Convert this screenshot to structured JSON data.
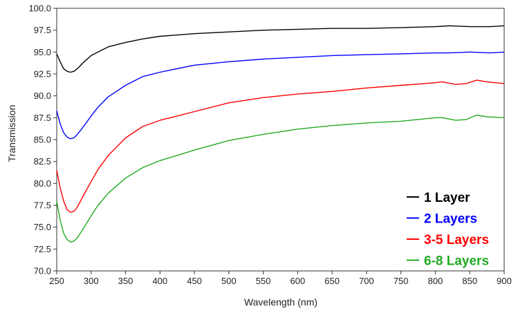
{
  "chart_data": {
    "type": "line",
    "title": "",
    "xlabel": "Wavelength (nm)",
    "ylabel": "Transmission",
    "xlim": [
      250,
      900
    ],
    "ylim": [
      70.0,
      100.0
    ],
    "xticks": [
      250,
      300,
      350,
      400,
      450,
      500,
      550,
      600,
      650,
      700,
      750,
      800,
      850,
      900
    ],
    "xtick_labels": [
      "250",
      "300",
      "350",
      "400",
      "450",
      "500",
      "550",
      "600",
      "650",
      "700",
      "750",
      "800",
      "850",
      "900"
    ],
    "yticks": [
      70.0,
      72.5,
      75.0,
      77.5,
      80.0,
      82.5,
      85.0,
      87.5,
      90.0,
      92.5,
      95.0,
      97.5,
      100.0
    ],
    "ytick_labels": [
      "70.0",
      "72.5",
      "75.0",
      "77.5",
      "80.0",
      "82.5",
      "85.0",
      "87.5",
      "90.0",
      "92.5",
      "95.0",
      "97.5",
      "100.0"
    ],
    "grid": false,
    "legend_position": "bottom-right",
    "series": [
      {
        "name": "1 Layer",
        "color": "#000000",
        "x": [
          250,
          255,
          260,
          265,
          270,
          275,
          280,
          290,
          300,
          310,
          325,
          350,
          375,
          400,
          450,
          500,
          550,
          600,
          650,
          700,
          750,
          800,
          820,
          850,
          880,
          900
        ],
        "y": [
          94.8,
          93.9,
          93.1,
          92.8,
          92.7,
          92.8,
          93.1,
          93.9,
          94.6,
          95.0,
          95.6,
          96.1,
          96.5,
          96.8,
          97.1,
          97.3,
          97.5,
          97.6,
          97.7,
          97.7,
          97.8,
          97.9,
          98.0,
          97.9,
          97.9,
          98.0
        ]
      },
      {
        "name": "2 Layers",
        "color": "#0000ff",
        "x": [
          250,
          255,
          260,
          265,
          270,
          275,
          280,
          290,
          300,
          310,
          325,
          350,
          375,
          400,
          450,
          500,
          550,
          600,
          650,
          700,
          750,
          800,
          820,
          850,
          880,
          900
        ],
        "y": [
          88.3,
          86.8,
          85.8,
          85.3,
          85.1,
          85.2,
          85.6,
          86.6,
          87.7,
          88.7,
          89.9,
          91.2,
          92.2,
          92.7,
          93.5,
          93.9,
          94.2,
          94.4,
          94.6,
          94.7,
          94.8,
          94.9,
          94.9,
          95.0,
          94.9,
          95.0
        ]
      },
      {
        "name": "3-5 Layers",
        "color": "#ff0000",
        "x": [
          250,
          255,
          260,
          265,
          270,
          275,
          280,
          290,
          300,
          310,
          325,
          350,
          375,
          400,
          450,
          500,
          550,
          600,
          650,
          700,
          750,
          800,
          810,
          830,
          845,
          860,
          875,
          900
        ],
        "y": [
          81.5,
          79.5,
          78.0,
          77.0,
          76.7,
          76.8,
          77.3,
          78.8,
          80.2,
          81.6,
          83.2,
          85.2,
          86.5,
          87.2,
          88.2,
          89.2,
          89.8,
          90.2,
          90.5,
          90.9,
          91.2,
          91.5,
          91.6,
          91.3,
          91.4,
          91.8,
          91.6,
          91.4
        ]
      },
      {
        "name": "6-8 Layers",
        "color": "#22aa22",
        "x": [
          250,
          255,
          260,
          265,
          270,
          275,
          280,
          290,
          300,
          310,
          325,
          350,
          375,
          400,
          450,
          500,
          550,
          600,
          650,
          700,
          750,
          800,
          810,
          830,
          845,
          860,
          875,
          900
        ],
        "y": [
          78.0,
          75.8,
          74.3,
          73.6,
          73.3,
          73.4,
          73.8,
          75.0,
          76.3,
          77.5,
          78.9,
          80.6,
          81.8,
          82.6,
          83.8,
          84.9,
          85.6,
          86.2,
          86.6,
          86.9,
          87.1,
          87.5,
          87.5,
          87.2,
          87.3,
          87.8,
          87.6,
          87.5
        ]
      }
    ]
  }
}
